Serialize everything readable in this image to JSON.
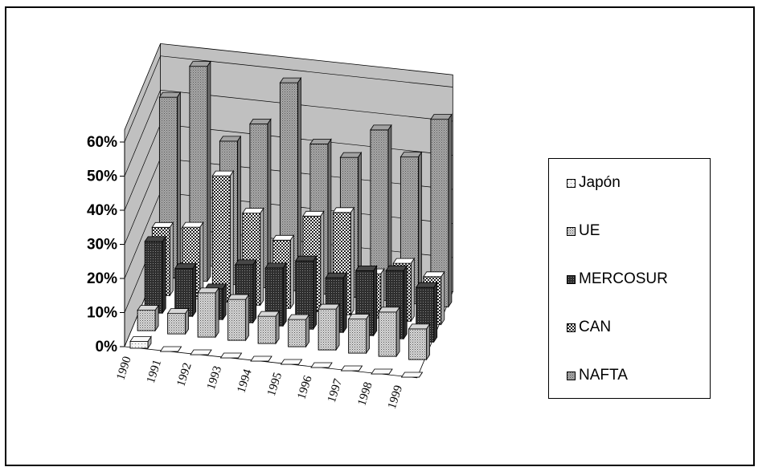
{
  "chart_data": {
    "type": "bar",
    "subtype": "3d-clustered-column",
    "categories": [
      "1990",
      "1991",
      "1992",
      "1993",
      "1994",
      "1995",
      "1996",
      "1997",
      "1998",
      "1999"
    ],
    "series": [
      {
        "name": "Japón",
        "values": [
          2,
          0,
          0,
          0,
          0,
          0,
          0,
          0,
          0,
          0
        ],
        "color": "#eeeeee",
        "pattern": "dots-light"
      },
      {
        "name": "UE",
        "values": [
          6,
          6,
          13,
          12,
          8,
          8,
          12,
          10,
          13,
          9
        ],
        "color": "#cccccc",
        "pattern": "dots-dense"
      },
      {
        "name": "MERCOSUR",
        "values": [
          21,
          14,
          9,
          17,
          17,
          20,
          16,
          19,
          20,
          16
        ],
        "color": "#444444",
        "pattern": "dark-dots"
      },
      {
        "name": "CAN",
        "values": [
          20,
          21,
          37,
          27,
          20,
          28,
          30,
          13,
          17,
          14
        ],
        "color": "#f2f2f2",
        "pattern": "checker"
      },
      {
        "name": "NAFTA",
        "values": [
          53,
          63,
          42,
          48,
          61,
          44,
          41,
          50,
          43,
          55
        ],
        "color": "#9a9a9a",
        "pattern": "gray-dots"
      }
    ],
    "y_axis": {
      "ticks": [
        "0%",
        "10%",
        "20%",
        "30%",
        "40%",
        "50%",
        "60%"
      ],
      "min": 0,
      "max": 60
    },
    "legend": {
      "position": "right"
    },
    "grid": true,
    "wall_color": "#c0c0c0"
  }
}
